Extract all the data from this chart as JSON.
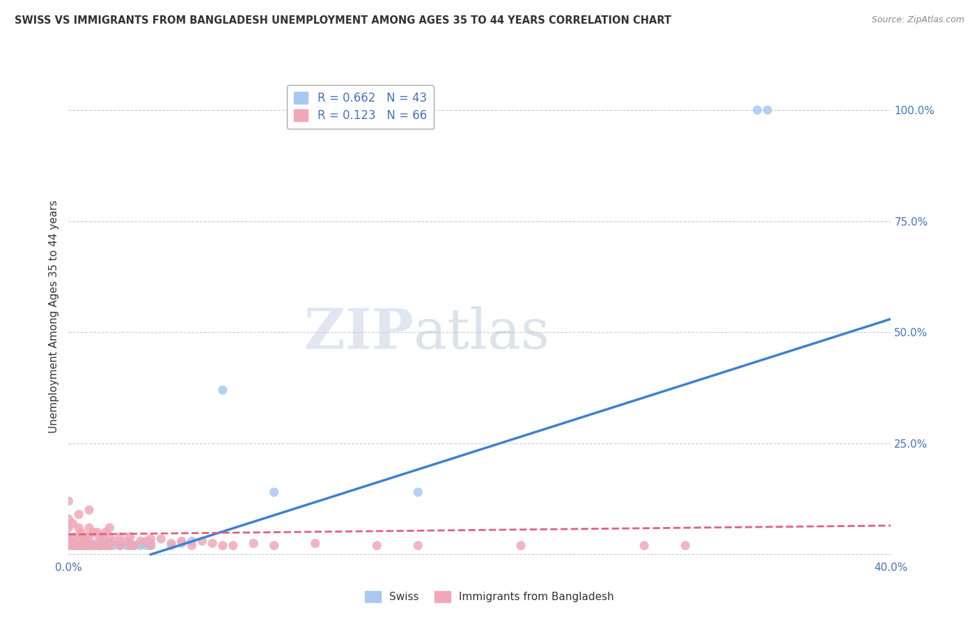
{
  "title": "SWISS VS IMMIGRANTS FROM BANGLADESH UNEMPLOYMENT AMONG AGES 35 TO 44 YEARS CORRELATION CHART",
  "source": "Source: ZipAtlas.com",
  "ylabel": "Unemployment Among Ages 35 to 44 years",
  "xlim": [
    0.0,
    0.4
  ],
  "ylim": [
    -0.01,
    1.08
  ],
  "yticks": [
    0.0,
    0.25,
    0.5,
    0.75,
    1.0
  ],
  "ytick_labels": [
    "",
    "25.0%",
    "50.0%",
    "75.0%",
    "100.0%"
  ],
  "xtick_left": "0.0%",
  "xtick_right": "40.0%",
  "legend_swiss_R": "0.662",
  "legend_swiss_N": "43",
  "legend_bd_R": "0.123",
  "legend_bd_N": "66",
  "swiss_color": "#a8c8f0",
  "bd_color": "#f0a8b8",
  "swiss_line_color": "#4080d0",
  "bd_line_color": "#e06080",
  "watermark_zip": "ZIP",
  "watermark_atlas": "atlas",
  "background_color": "#ffffff",
  "grid_color": "#cccccc",
  "swiss_scatter_x": [
    0.0,
    0.0,
    0.003,
    0.003,
    0.004,
    0.005,
    0.006,
    0.007,
    0.008,
    0.009,
    0.01,
    0.01,
    0.012,
    0.013,
    0.014,
    0.015,
    0.015,
    0.016,
    0.017,
    0.018,
    0.019,
    0.02,
    0.02,
    0.022,
    0.025,
    0.025,
    0.028,
    0.03,
    0.03,
    0.032,
    0.035,
    0.036,
    0.038,
    0.04,
    0.04,
    0.05,
    0.055,
    0.06,
    0.075,
    0.1,
    0.17,
    0.335,
    0.34
  ],
  "swiss_scatter_y": [
    0.02,
    0.03,
    0.02,
    0.025,
    0.02,
    0.02,
    0.02,
    0.025,
    0.02,
    0.02,
    0.02,
    0.025,
    0.02,
    0.025,
    0.02,
    0.02,
    0.025,
    0.02,
    0.025,
    0.02,
    0.025,
    0.02,
    0.025,
    0.02,
    0.02,
    0.025,
    0.02,
    0.02,
    0.025,
    0.02,
    0.02,
    0.025,
    0.02,
    0.02,
    0.025,
    0.02,
    0.025,
    0.03,
    0.37,
    0.14,
    0.14,
    1.0,
    1.0
  ],
  "bd_scatter_x": [
    0.0,
    0.0,
    0.0,
    0.0,
    0.0,
    0.001,
    0.002,
    0.002,
    0.003,
    0.003,
    0.004,
    0.005,
    0.005,
    0.005,
    0.005,
    0.006,
    0.006,
    0.007,
    0.007,
    0.008,
    0.009,
    0.01,
    0.01,
    0.01,
    0.01,
    0.012,
    0.012,
    0.013,
    0.014,
    0.015,
    0.015,
    0.016,
    0.017,
    0.018,
    0.018,
    0.019,
    0.02,
    0.02,
    0.02,
    0.022,
    0.025,
    0.025,
    0.028,
    0.03,
    0.03,
    0.032,
    0.035,
    0.038,
    0.04,
    0.04,
    0.045,
    0.05,
    0.055,
    0.06,
    0.065,
    0.07,
    0.075,
    0.08,
    0.09,
    0.1,
    0.12,
    0.15,
    0.17,
    0.22,
    0.28,
    0.3
  ],
  "bd_scatter_y": [
    0.02,
    0.04,
    0.06,
    0.08,
    0.12,
    0.03,
    0.02,
    0.07,
    0.02,
    0.04,
    0.02,
    0.02,
    0.04,
    0.06,
    0.09,
    0.02,
    0.05,
    0.02,
    0.04,
    0.02,
    0.04,
    0.02,
    0.04,
    0.06,
    0.1,
    0.02,
    0.05,
    0.02,
    0.05,
    0.02,
    0.04,
    0.02,
    0.04,
    0.02,
    0.05,
    0.02,
    0.02,
    0.04,
    0.06,
    0.03,
    0.02,
    0.04,
    0.03,
    0.02,
    0.04,
    0.02,
    0.03,
    0.03,
    0.02,
    0.035,
    0.035,
    0.025,
    0.03,
    0.02,
    0.03,
    0.025,
    0.02,
    0.02,
    0.025,
    0.02,
    0.025,
    0.02,
    0.02,
    0.02,
    0.02,
    0.02
  ],
  "swiss_line_x0": 0.04,
  "swiss_line_y0": 0.0,
  "swiss_line_x1": 0.4,
  "swiss_line_y1": 0.53,
  "bd_line_x0": 0.0,
  "bd_line_y0": 0.045,
  "bd_line_x1": 0.4,
  "bd_line_y1": 0.065
}
